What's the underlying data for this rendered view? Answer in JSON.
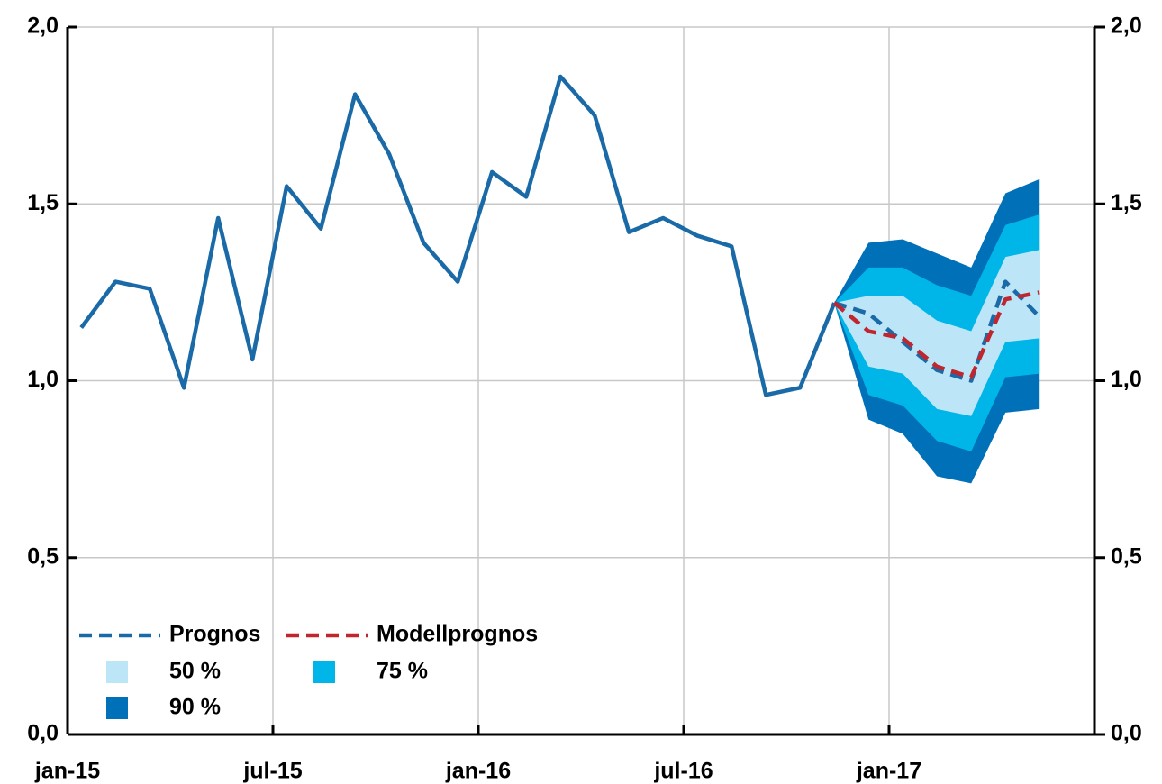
{
  "chart_data": {
    "type": "line",
    "x": [
      "2015-01",
      "2015-02",
      "2015-03",
      "2015-04",
      "2015-05",
      "2015-06",
      "2015-07",
      "2015-08",
      "2015-09",
      "2015-10",
      "2015-11",
      "2015-12",
      "2016-01",
      "2016-02",
      "2016-03",
      "2016-04",
      "2016-05",
      "2016-06",
      "2016-07",
      "2016-08",
      "2016-09",
      "2016-10",
      "2016-11",
      "2016-12",
      "2017-01",
      "2017-02",
      "2017-03",
      "2017-04",
      "2017-05"
    ],
    "xlim": [
      "2015-01",
      "2017-07"
    ],
    "xticks": [
      {
        "value": "2015-01",
        "label": "jan-15"
      },
      {
        "value": "2015-07",
        "label": "jul-15"
      },
      {
        "value": "2016-01",
        "label": "jan-16"
      },
      {
        "value": "2016-07",
        "label": "jul-16"
      },
      {
        "value": "2017-01",
        "label": "jan-17"
      }
    ],
    "ylim": [
      0,
      2
    ],
    "yticks": [
      {
        "value": 0,
        "label": "0,0"
      },
      {
        "value": 0.5,
        "label": "0,5"
      },
      {
        "value": 1,
        "label": "1,0"
      },
      {
        "value": 1.5,
        "label": "1,5"
      },
      {
        "value": 2,
        "label": "2,0"
      }
    ],
    "y2lim": [
      0,
      2
    ],
    "y2ticks": [
      {
        "value": 0,
        "label": "0,0"
      },
      {
        "value": 0.5,
        "label": "0,5"
      },
      {
        "value": 1,
        "label": "1,0"
      },
      {
        "value": 1.5,
        "label": "1,5"
      },
      {
        "value": 2,
        "label": "2,0"
      }
    ],
    "grid": true,
    "legend": "lower left",
    "series": [
      {
        "color": "#1a6aa8",
        "dash": false,
        "values": [
          1.15,
          1.28,
          1.26,
          0.98,
          1.46,
          1.06,
          1.55,
          1.43,
          1.81,
          1.64,
          1.39,
          1.28,
          1.59,
          1.52,
          1.86,
          1.75,
          1.42,
          1.46,
          1.41,
          1.38,
          0.96,
          0.98,
          1.22,
          null,
          null,
          null,
          null,
          null,
          null
        ]
      },
      {
        "name": "Prognos",
        "color": "#1a6aa8",
        "dash": true,
        "values": [
          null,
          null,
          null,
          null,
          null,
          null,
          null,
          null,
          null,
          null,
          null,
          null,
          null,
          null,
          null,
          null,
          null,
          null,
          null,
          null,
          null,
          null,
          1.22,
          1.19,
          1.11,
          1.03,
          1.0,
          1.28,
          1.18
        ]
      },
      {
        "name": "Modellprognos",
        "color": "#c0262d",
        "dash": true,
        "values": [
          null,
          null,
          null,
          null,
          null,
          null,
          null,
          null,
          null,
          null,
          null,
          null,
          null,
          null,
          null,
          null,
          null,
          null,
          null,
          null,
          null,
          null,
          1.22,
          1.14,
          1.12,
          1.04,
          1.01,
          1.23,
          1.25
        ]
      }
    ],
    "bands": [
      {
        "name": "50 %",
        "color": "#bde5f8",
        "upper": [
          null,
          null,
          null,
          null,
          null,
          null,
          null,
          null,
          null,
          null,
          null,
          null,
          null,
          null,
          null,
          null,
          null,
          null,
          null,
          null,
          null,
          null,
          1.22,
          1.24,
          1.24,
          1.17,
          1.14,
          1.35,
          1.37
        ],
        "lower": [
          null,
          null,
          null,
          null,
          null,
          null,
          null,
          null,
          null,
          null,
          null,
          null,
          null,
          null,
          null,
          null,
          null,
          null,
          null,
          null,
          null,
          null,
          1.22,
          1.04,
          1.02,
          0.92,
          0.9,
          1.11,
          1.12
        ]
      },
      {
        "name": "75 %",
        "color": "#00b5e8",
        "upper": [
          null,
          null,
          null,
          null,
          null,
          null,
          null,
          null,
          null,
          null,
          null,
          null,
          null,
          null,
          null,
          null,
          null,
          null,
          null,
          null,
          null,
          null,
          1.22,
          1.32,
          1.32,
          1.27,
          1.24,
          1.44,
          1.47
        ],
        "lower": [
          null,
          null,
          null,
          null,
          null,
          null,
          null,
          null,
          null,
          null,
          null,
          null,
          null,
          null,
          null,
          null,
          null,
          null,
          null,
          null,
          null,
          null,
          1.22,
          0.96,
          0.93,
          0.83,
          0.8,
          1.01,
          1.02
        ]
      },
      {
        "name": "90 %",
        "color": "#0071b9",
        "upper": [
          null,
          null,
          null,
          null,
          null,
          null,
          null,
          null,
          null,
          null,
          null,
          null,
          null,
          null,
          null,
          null,
          null,
          null,
          null,
          null,
          null,
          null,
          1.22,
          1.39,
          1.4,
          1.36,
          1.32,
          1.53,
          1.57
        ],
        "lower": [
          null,
          null,
          null,
          null,
          null,
          null,
          null,
          null,
          null,
          null,
          null,
          null,
          null,
          null,
          null,
          null,
          null,
          null,
          null,
          null,
          null,
          null,
          1.22,
          0.89,
          0.85,
          0.73,
          0.71,
          0.91,
          0.92
        ]
      }
    ]
  }
}
